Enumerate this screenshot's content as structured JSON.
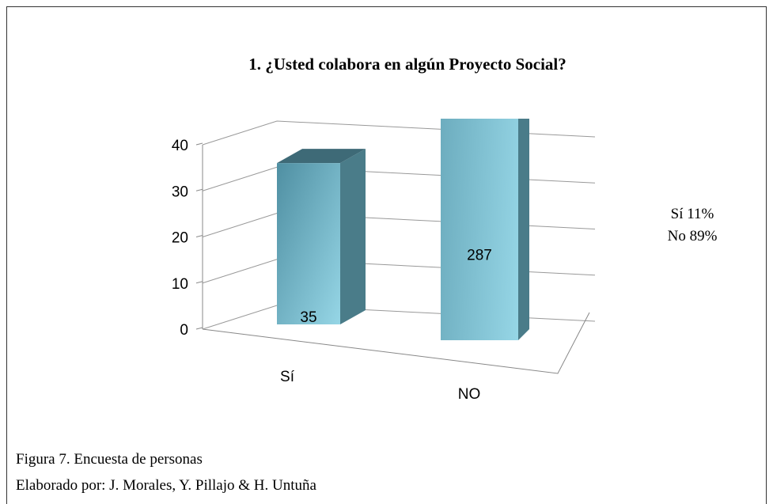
{
  "chart_data": {
    "type": "bar3d",
    "title": "1. ¿Usted colabora en algún Proyecto Social?",
    "categories": [
      "Sí",
      "NO"
    ],
    "values": [
      35,
      287
    ],
    "ylim": [
      0,
      40
    ],
    "yticks": [
      0,
      10,
      20,
      30,
      40
    ],
    "grid": true,
    "color": "#6fb3c6",
    "annotations": [
      "Sí  11%",
      "No 89%"
    ]
  },
  "caption": [
    "Figura 7. Encuesta de personas",
    "Elaborado por: J. Morales, Y. Pillajo & H. Untuña"
  ]
}
